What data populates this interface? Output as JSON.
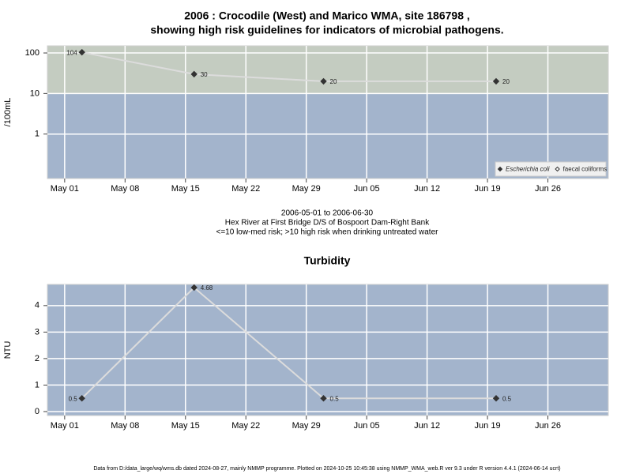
{
  "chart_data": [
    {
      "type": "line",
      "title": [
        "2006 : Crocodile (West) and Marico WMA, site 186798 ,",
        "showing high risk guidelines for indicators of microbial pathogens."
      ],
      "y_label": "/100mL",
      "notes": [
        "2006-05-01 to 2006-06-30",
        "Hex River at First Bridge D/S of Bospoort Dam-Right Bank",
        "<=10 low-med risk; >10 high risk when drinking untreated water"
      ],
      "x": [
        "May 03",
        "May 16",
        "May 31",
        "Jun 20"
      ],
      "series": [
        {
          "name": "Escherichia coli",
          "color": "#333333",
          "values": [
            104,
            30,
            20,
            20
          ]
        },
        {
          "name": "faecal coliforms",
          "color": "#ffffff",
          "values": [
            null,
            null,
            null,
            null
          ]
        }
      ],
      "line_color": "#dcdcdc",
      "xlim": [
        "Apr 29",
        "Jul 03"
      ],
      "xticks": [
        "May 01",
        "May 08",
        "May 15",
        "May 22",
        "May 29",
        "Jun 05",
        "Jun 12",
        "Jun 19",
        "Jun 26"
      ],
      "ylim": [
        0.08,
        150
      ],
      "yticks": [
        1,
        10,
        100
      ],
      "log_y": true,
      "threshold": 10,
      "below_color": "#a3b4cc",
      "above_color": "#c4ccc1",
      "grid": true,
      "legend": "bottom right"
    },
    {
      "type": "line",
      "title": [
        "Turbidity"
      ],
      "y_label": "NTU",
      "x": [
        "May 03",
        "May 16",
        "May 31",
        "Jun 20"
      ],
      "series": [
        {
          "name": "Turbidity",
          "color": "#333333",
          "values": [
            0.5,
            4.68,
            0.5,
            0.5
          ]
        }
      ],
      "line_color": "#dcdcdc",
      "xlim": [
        "Apr 29",
        "Jul 03"
      ],
      "xticks": [
        "May 01",
        "May 08",
        "May 15",
        "May 22",
        "May 29",
        "Jun 05",
        "Jun 12",
        "Jun 19",
        "Jun 26"
      ],
      "ylim": [
        -0.15,
        4.8
      ],
      "yticks": [
        0,
        1,
        2,
        3,
        4
      ],
      "log_y": false,
      "below_color": "#a3b4cc",
      "grid": true
    }
  ],
  "footer": "Data from D:/data_large/wq/wms.db dated 2024-08-27, mainly NMMP programme. Plotted on 2024-10-25 10:45:38 using NMMP_WMA_web.R ver 9.3 under R version 4.4.1 (2024-06-14 ucrt)"
}
